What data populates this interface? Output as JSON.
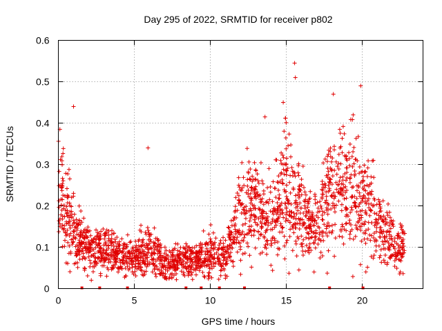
{
  "chart_data": {
    "type": "scatter",
    "title": "Day 295 of 2022, SRMTID for receiver p802",
    "xlabel": "GPS time / hours",
    "ylabel": "SRMTID / TECUs",
    "xlim": [
      0,
      24
    ],
    "ylim": [
      0,
      0.6
    ],
    "xticks": [
      0,
      5,
      10,
      15,
      20
    ],
    "xtick_labels": [
      "0",
      "5",
      "10",
      "15",
      "20"
    ],
    "yticks": [
      0,
      0.1,
      0.2,
      0.3,
      0.4,
      0.5,
      0.6
    ],
    "ytick_labels": [
      "0",
      "0.1",
      "0.2",
      "0.3",
      "0.4",
      "0.5",
      "0.6"
    ],
    "grid": true,
    "marker": "+",
    "color": "#e00000",
    "zero_markers_x": [
      1.55,
      2.72,
      4.55,
      8.4,
      9.4,
      10.6,
      12.25,
      17.85,
      20.05
    ],
    "density_profile": [
      {
        "x": 0.0,
        "center": 0.27,
        "spread": 0.11
      },
      {
        "x": 0.6,
        "center": 0.16,
        "spread": 0.08
      },
      {
        "x": 1.2,
        "center": 0.12,
        "spread": 0.05
      },
      {
        "x": 2.0,
        "center": 0.1,
        "spread": 0.04
      },
      {
        "x": 3.0,
        "center": 0.1,
        "spread": 0.04
      },
      {
        "x": 4.0,
        "center": 0.085,
        "spread": 0.035
      },
      {
        "x": 5.0,
        "center": 0.075,
        "spread": 0.03
      },
      {
        "x": 6.0,
        "center": 0.09,
        "spread": 0.05
      },
      {
        "x": 7.0,
        "center": 0.06,
        "spread": 0.03
      },
      {
        "x": 8.0,
        "center": 0.07,
        "spread": 0.03
      },
      {
        "x": 9.0,
        "center": 0.07,
        "spread": 0.03
      },
      {
        "x": 10.0,
        "center": 0.08,
        "spread": 0.04
      },
      {
        "x": 11.0,
        "center": 0.08,
        "spread": 0.03
      },
      {
        "x": 12.0,
        "center": 0.18,
        "spread": 0.08
      },
      {
        "x": 13.0,
        "center": 0.2,
        "spread": 0.08
      },
      {
        "x": 14.0,
        "center": 0.16,
        "spread": 0.07
      },
      {
        "x": 15.0,
        "center": 0.23,
        "spread": 0.11
      },
      {
        "x": 16.0,
        "center": 0.17,
        "spread": 0.07
      },
      {
        "x": 17.0,
        "center": 0.15,
        "spread": 0.06
      },
      {
        "x": 18.0,
        "center": 0.24,
        "spread": 0.1
      },
      {
        "x": 19.0,
        "center": 0.26,
        "spread": 0.1
      },
      {
        "x": 20.0,
        "center": 0.22,
        "spread": 0.1
      },
      {
        "x": 21.0,
        "center": 0.15,
        "spread": 0.06
      },
      {
        "x": 22.0,
        "center": 0.11,
        "spread": 0.05
      },
      {
        "x": 22.8,
        "center": 0.1,
        "spread": 0.04
      }
    ],
    "notable_points": [
      {
        "x": 1.0,
        "y": 0.44
      },
      {
        "x": 15.55,
        "y": 0.545
      },
      {
        "x": 15.6,
        "y": 0.51
      },
      {
        "x": 18.1,
        "y": 0.47
      },
      {
        "x": 19.9,
        "y": 0.49
      },
      {
        "x": 14.8,
        "y": 0.45
      },
      {
        "x": 13.6,
        "y": 0.415
      },
      {
        "x": 5.9,
        "y": 0.34
      },
      {
        "x": 0.1,
        "y": 0.385
      }
    ]
  }
}
